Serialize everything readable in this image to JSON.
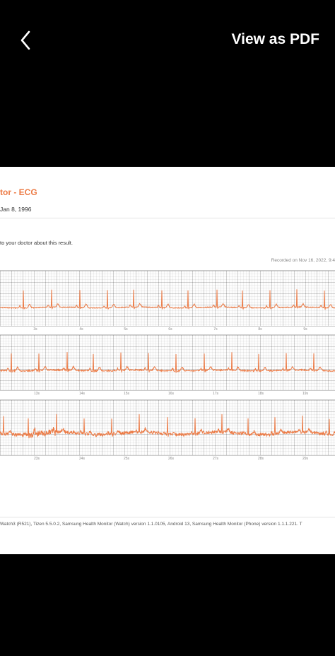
{
  "header": {
    "back_icon": "chevron-left-icon",
    "view_pdf_label": "View as PDF"
  },
  "report": {
    "title": "tor - ECG",
    "dob": "Jan 8, 1996",
    "advice": "to your doctor about this result.",
    "recorded": "Recorded on Nov 16, 2022, 9:4",
    "strips": [
      {
        "ticks": [
          "3s",
          "4s",
          "5s",
          "6s",
          "7s",
          "8s",
          "9s"
        ]
      },
      {
        "ticks": [
          "13s",
          "14s",
          "15s",
          "16s",
          "17s",
          "18s",
          "19s"
        ]
      },
      {
        "ticks": [
          "23s",
          "24s",
          "25s",
          "26s",
          "27s",
          "28s",
          "29s"
        ]
      }
    ],
    "footer": "Watch3 (R521), Tizen 5.5.0.2, Samsung Health Monitor (Watch) version 1.1.0105, Android 13, Samsung Health Monitor (Phone) version 1.1.1.221. T"
  },
  "colors": {
    "trace": "#ec7b46",
    "title": "#ec7b46"
  }
}
